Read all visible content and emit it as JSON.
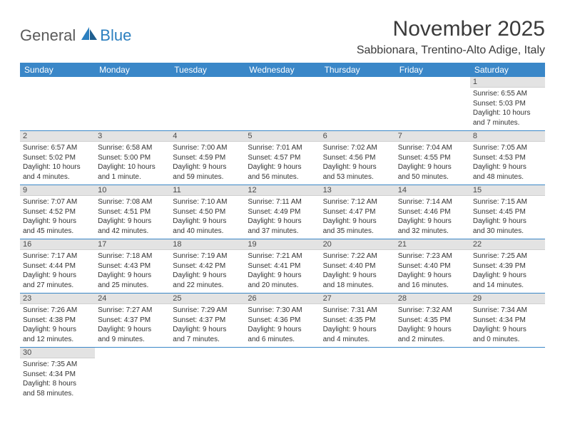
{
  "logo": {
    "text1": "General",
    "text2": "Blue"
  },
  "title": "November 2025",
  "location": "Sabbionara, Trentino-Alto Adige, Italy",
  "colors": {
    "header_bg": "#3a87c8",
    "header_text": "#ffffff",
    "daynum_bg": "#e3e3e3",
    "body_text": "#333333",
    "row_border": "#3a87c8",
    "logo_gray": "#5a5a5a",
    "logo_blue": "#2b7fbf"
  },
  "dow": [
    "Sunday",
    "Monday",
    "Tuesday",
    "Wednesday",
    "Thursday",
    "Friday",
    "Saturday"
  ],
  "weeks": [
    [
      {
        "n": "",
        "lines": []
      },
      {
        "n": "",
        "lines": []
      },
      {
        "n": "",
        "lines": []
      },
      {
        "n": "",
        "lines": []
      },
      {
        "n": "",
        "lines": []
      },
      {
        "n": "",
        "lines": []
      },
      {
        "n": "1",
        "lines": [
          "Sunrise: 6:55 AM",
          "Sunset: 5:03 PM",
          "Daylight: 10 hours",
          "and 7 minutes."
        ]
      }
    ],
    [
      {
        "n": "2",
        "lines": [
          "Sunrise: 6:57 AM",
          "Sunset: 5:02 PM",
          "Daylight: 10 hours",
          "and 4 minutes."
        ]
      },
      {
        "n": "3",
        "lines": [
          "Sunrise: 6:58 AM",
          "Sunset: 5:00 PM",
          "Daylight: 10 hours",
          "and 1 minute."
        ]
      },
      {
        "n": "4",
        "lines": [
          "Sunrise: 7:00 AM",
          "Sunset: 4:59 PM",
          "Daylight: 9 hours",
          "and 59 minutes."
        ]
      },
      {
        "n": "5",
        "lines": [
          "Sunrise: 7:01 AM",
          "Sunset: 4:57 PM",
          "Daylight: 9 hours",
          "and 56 minutes."
        ]
      },
      {
        "n": "6",
        "lines": [
          "Sunrise: 7:02 AM",
          "Sunset: 4:56 PM",
          "Daylight: 9 hours",
          "and 53 minutes."
        ]
      },
      {
        "n": "7",
        "lines": [
          "Sunrise: 7:04 AM",
          "Sunset: 4:55 PM",
          "Daylight: 9 hours",
          "and 50 minutes."
        ]
      },
      {
        "n": "8",
        "lines": [
          "Sunrise: 7:05 AM",
          "Sunset: 4:53 PM",
          "Daylight: 9 hours",
          "and 48 minutes."
        ]
      }
    ],
    [
      {
        "n": "9",
        "lines": [
          "Sunrise: 7:07 AM",
          "Sunset: 4:52 PM",
          "Daylight: 9 hours",
          "and 45 minutes."
        ]
      },
      {
        "n": "10",
        "lines": [
          "Sunrise: 7:08 AM",
          "Sunset: 4:51 PM",
          "Daylight: 9 hours",
          "and 42 minutes."
        ]
      },
      {
        "n": "11",
        "lines": [
          "Sunrise: 7:10 AM",
          "Sunset: 4:50 PM",
          "Daylight: 9 hours",
          "and 40 minutes."
        ]
      },
      {
        "n": "12",
        "lines": [
          "Sunrise: 7:11 AM",
          "Sunset: 4:49 PM",
          "Daylight: 9 hours",
          "and 37 minutes."
        ]
      },
      {
        "n": "13",
        "lines": [
          "Sunrise: 7:12 AM",
          "Sunset: 4:47 PM",
          "Daylight: 9 hours",
          "and 35 minutes."
        ]
      },
      {
        "n": "14",
        "lines": [
          "Sunrise: 7:14 AM",
          "Sunset: 4:46 PM",
          "Daylight: 9 hours",
          "and 32 minutes."
        ]
      },
      {
        "n": "15",
        "lines": [
          "Sunrise: 7:15 AM",
          "Sunset: 4:45 PM",
          "Daylight: 9 hours",
          "and 30 minutes."
        ]
      }
    ],
    [
      {
        "n": "16",
        "lines": [
          "Sunrise: 7:17 AM",
          "Sunset: 4:44 PM",
          "Daylight: 9 hours",
          "and 27 minutes."
        ]
      },
      {
        "n": "17",
        "lines": [
          "Sunrise: 7:18 AM",
          "Sunset: 4:43 PM",
          "Daylight: 9 hours",
          "and 25 minutes."
        ]
      },
      {
        "n": "18",
        "lines": [
          "Sunrise: 7:19 AM",
          "Sunset: 4:42 PM",
          "Daylight: 9 hours",
          "and 22 minutes."
        ]
      },
      {
        "n": "19",
        "lines": [
          "Sunrise: 7:21 AM",
          "Sunset: 4:41 PM",
          "Daylight: 9 hours",
          "and 20 minutes."
        ]
      },
      {
        "n": "20",
        "lines": [
          "Sunrise: 7:22 AM",
          "Sunset: 4:40 PM",
          "Daylight: 9 hours",
          "and 18 minutes."
        ]
      },
      {
        "n": "21",
        "lines": [
          "Sunrise: 7:23 AM",
          "Sunset: 4:40 PM",
          "Daylight: 9 hours",
          "and 16 minutes."
        ]
      },
      {
        "n": "22",
        "lines": [
          "Sunrise: 7:25 AM",
          "Sunset: 4:39 PM",
          "Daylight: 9 hours",
          "and 14 minutes."
        ]
      }
    ],
    [
      {
        "n": "23",
        "lines": [
          "Sunrise: 7:26 AM",
          "Sunset: 4:38 PM",
          "Daylight: 9 hours",
          "and 12 minutes."
        ]
      },
      {
        "n": "24",
        "lines": [
          "Sunrise: 7:27 AM",
          "Sunset: 4:37 PM",
          "Daylight: 9 hours",
          "and 9 minutes."
        ]
      },
      {
        "n": "25",
        "lines": [
          "Sunrise: 7:29 AM",
          "Sunset: 4:37 PM",
          "Daylight: 9 hours",
          "and 7 minutes."
        ]
      },
      {
        "n": "26",
        "lines": [
          "Sunrise: 7:30 AM",
          "Sunset: 4:36 PM",
          "Daylight: 9 hours",
          "and 6 minutes."
        ]
      },
      {
        "n": "27",
        "lines": [
          "Sunrise: 7:31 AM",
          "Sunset: 4:35 PM",
          "Daylight: 9 hours",
          "and 4 minutes."
        ]
      },
      {
        "n": "28",
        "lines": [
          "Sunrise: 7:32 AM",
          "Sunset: 4:35 PM",
          "Daylight: 9 hours",
          "and 2 minutes."
        ]
      },
      {
        "n": "29",
        "lines": [
          "Sunrise: 7:34 AM",
          "Sunset: 4:34 PM",
          "Daylight: 9 hours",
          "and 0 minutes."
        ]
      }
    ],
    [
      {
        "n": "30",
        "lines": [
          "Sunrise: 7:35 AM",
          "Sunset: 4:34 PM",
          "Daylight: 8 hours",
          "and 58 minutes."
        ]
      },
      {
        "n": "",
        "lines": []
      },
      {
        "n": "",
        "lines": []
      },
      {
        "n": "",
        "lines": []
      },
      {
        "n": "",
        "lines": []
      },
      {
        "n": "",
        "lines": []
      },
      {
        "n": "",
        "lines": []
      }
    ]
  ]
}
